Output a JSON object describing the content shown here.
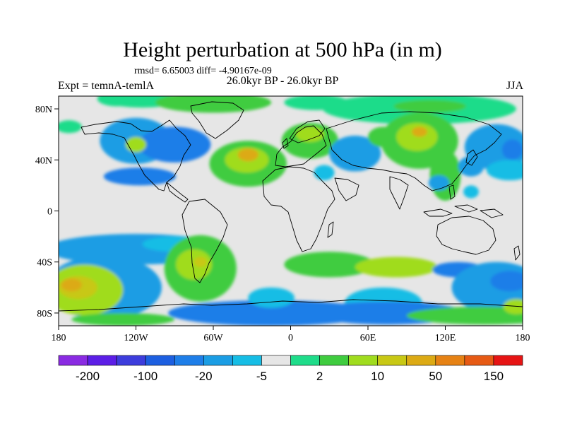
{
  "header": {
    "title": "Height perturbation at 500 hPa (in m)",
    "stats": "rmsd= 6.65003 diff= -4.90167e-09",
    "subtitle": "26.0kyr BP - 26.0kyr BP",
    "experiment": "Expt = temnA-temlA",
    "season": "JJA"
  },
  "chart_data": {
    "type": "heatmap",
    "title": "Height perturbation at 500 hPa (in m)",
    "xlim": [
      -180,
      180
    ],
    "ylim": [
      -90,
      90
    ],
    "x_ticks": [
      {
        "value": -180,
        "label": "180"
      },
      {
        "value": -120,
        "label": "120W"
      },
      {
        "value": -60,
        "label": "60W"
      },
      {
        "value": 0,
        "label": "0"
      },
      {
        "value": 60,
        "label": "60E"
      },
      {
        "value": 120,
        "label": "120E"
      },
      {
        "value": 180,
        "label": "180"
      }
    ],
    "y_ticks": [
      {
        "value": 80,
        "label": "80N"
      },
      {
        "value": 40,
        "label": "40N"
      },
      {
        "value": 0,
        "label": "0"
      },
      {
        "value": -40,
        "label": "40S"
      },
      {
        "value": -80,
        "label": "80S"
      }
    ],
    "colorbar": {
      "colors": [
        "#8a2be2",
        "#5c1ee6",
        "#3d3ddc",
        "#1d5fe0",
        "#1e7ee8",
        "#1b9de4",
        "#16bde5",
        "#e6e6e6",
        "#1fdc8a",
        "#3fcc3f",
        "#a0dc1e",
        "#c8c814",
        "#dcaa14",
        "#e68214",
        "#e65a14",
        "#e61414"
      ],
      "tick_labels": [
        {
          "after_box": 1,
          "label": "-200"
        },
        {
          "after_box": 3,
          "label": "-100"
        },
        {
          "after_box": 5,
          "label": "-20"
        },
        {
          "after_box": 7,
          "label": "-5"
        },
        {
          "after_box": 9,
          "label": "2"
        },
        {
          "after_box": 11,
          "label": "10"
        },
        {
          "after_box": 13,
          "label": "50"
        },
        {
          "after_box": 15,
          "label": "150"
        }
      ]
    },
    "regions": [
      {
        "lon": -135,
        "lat": 88,
        "rx": 15,
        "ry": 6,
        "level": 8
      },
      {
        "lon": -115,
        "lat": 87,
        "rx": 30,
        "ry": 6,
        "level": 8
      },
      {
        "lon": -60,
        "lat": 85,
        "rx": 45,
        "ry": 8,
        "level": 9
      },
      {
        "lon": -45,
        "lat": 85,
        "rx": 22,
        "ry": 5,
        "level": 9
      },
      {
        "lon": 20,
        "lat": 85,
        "rx": 25,
        "ry": 6,
        "level": 8
      },
      {
        "lon": 100,
        "lat": 80,
        "rx": 75,
        "ry": 12,
        "level": 8
      },
      {
        "lon": 108,
        "lat": 82,
        "rx": 28,
        "ry": 5,
        "level": 9
      },
      {
        "lon": -172,
        "lat": 66,
        "rx": 10,
        "ry": 5,
        "level": 8
      },
      {
        "lon": -120,
        "lat": 55,
        "rx": 28,
        "ry": 18,
        "level": 5
      },
      {
        "lon": -90,
        "lat": 52,
        "rx": 28,
        "ry": 14,
        "level": 4
      },
      {
        "lon": -120,
        "lat": 52,
        "rx": 8,
        "ry": 6,
        "level": 10
      },
      {
        "lon": -117,
        "lat": 27,
        "rx": 28,
        "ry": 7,
        "level": 4
      },
      {
        "lon": -33,
        "lat": 37,
        "rx": 30,
        "ry": 18,
        "level": 9
      },
      {
        "lon": -34,
        "lat": 40,
        "rx": 17,
        "ry": 10,
        "level": 10
      },
      {
        "lon": -33,
        "lat": 44,
        "rx": 8,
        "ry": 5,
        "level": 12
      },
      {
        "lon": 15,
        "lat": 55,
        "rx": 22,
        "ry": 14,
        "level": 9
      },
      {
        "lon": 15,
        "lat": 60,
        "rx": 11,
        "ry": 6,
        "level": 10
      },
      {
        "lon": 26,
        "lat": 30,
        "rx": 8,
        "ry": 6,
        "level": 6
      },
      {
        "lon": 50,
        "lat": 45,
        "rx": 20,
        "ry": 14,
        "level": 5
      },
      {
        "lon": 72,
        "lat": 58,
        "rx": 12,
        "ry": 8,
        "level": 9
      },
      {
        "lon": 100,
        "lat": 55,
        "rx": 30,
        "ry": 22,
        "level": 9
      },
      {
        "lon": 98,
        "lat": 58,
        "rx": 16,
        "ry": 11,
        "level": 10
      },
      {
        "lon": 100,
        "lat": 62,
        "rx": 6,
        "ry": 4,
        "level": 12
      },
      {
        "lon": 120,
        "lat": 28,
        "rx": 12,
        "ry": 20,
        "level": 9
      },
      {
        "lon": 115,
        "lat": 22,
        "rx": 8,
        "ry": 6,
        "level": 5
      },
      {
        "lon": 140,
        "lat": 35,
        "rx": 10,
        "ry": 8,
        "level": 5
      },
      {
        "lon": 140,
        "lat": 15,
        "rx": 6,
        "ry": 5,
        "level": 6
      },
      {
        "lon": 160,
        "lat": 50,
        "rx": 25,
        "ry": 18,
        "level": 5
      },
      {
        "lon": 172,
        "lat": 48,
        "rx": 8,
        "ry": 8,
        "level": 4
      },
      {
        "lon": 170,
        "lat": 32,
        "rx": 18,
        "ry": 8,
        "level": 6
      },
      {
        "lon": -120,
        "lat": -30,
        "rx": 70,
        "ry": 12,
        "level": 5
      },
      {
        "lon": -90,
        "lat": -26,
        "rx": 25,
        "ry": 6,
        "level": 6
      },
      {
        "lon": -145,
        "lat": -60,
        "rx": 45,
        "ry": 25,
        "level": 5
      },
      {
        "lon": -160,
        "lat": -62,
        "rx": 30,
        "ry": 20,
        "level": 10
      },
      {
        "lon": -165,
        "lat": -60,
        "rx": 15,
        "ry": 9,
        "level": 11
      },
      {
        "lon": -170,
        "lat": -58,
        "rx": 8,
        "ry": 5,
        "level": 12
      },
      {
        "lon": -70,
        "lat": -45,
        "rx": 28,
        "ry": 26,
        "level": 9
      },
      {
        "lon": -75,
        "lat": -42,
        "rx": 14,
        "ry": 12,
        "level": 10
      },
      {
        "lon": -70,
        "lat": -40,
        "rx": 5,
        "ry": 4,
        "level": 11
      },
      {
        "lon": -15,
        "lat": -80,
        "rx": 80,
        "ry": 10,
        "level": 4
      },
      {
        "lon": -15,
        "lat": -68,
        "rx": 18,
        "ry": 8,
        "level": 6
      },
      {
        "lon": 30,
        "lat": -42,
        "rx": 35,
        "ry": 10,
        "level": 9
      },
      {
        "lon": 82,
        "lat": -44,
        "rx": 32,
        "ry": 8,
        "level": 10
      },
      {
        "lon": 72,
        "lat": -72,
        "rx": 30,
        "ry": 12,
        "level": 6
      },
      {
        "lon": 75,
        "lat": -80,
        "rx": 60,
        "ry": 9,
        "level": 4
      },
      {
        "lon": 130,
        "lat": -46,
        "rx": 20,
        "ry": 6,
        "level": 4
      },
      {
        "lon": 160,
        "lat": -60,
        "rx": 35,
        "ry": 20,
        "level": 5
      },
      {
        "lon": 170,
        "lat": -55,
        "rx": 15,
        "ry": 8,
        "level": 4
      },
      {
        "lon": 150,
        "lat": -82,
        "rx": 60,
        "ry": 7,
        "level": 9
      },
      {
        "lon": 175,
        "lat": -75,
        "rx": 10,
        "ry": 6,
        "level": 10
      },
      {
        "lon": -130,
        "lat": -85,
        "rx": 40,
        "ry": 5,
        "level": 9
      }
    ]
  }
}
